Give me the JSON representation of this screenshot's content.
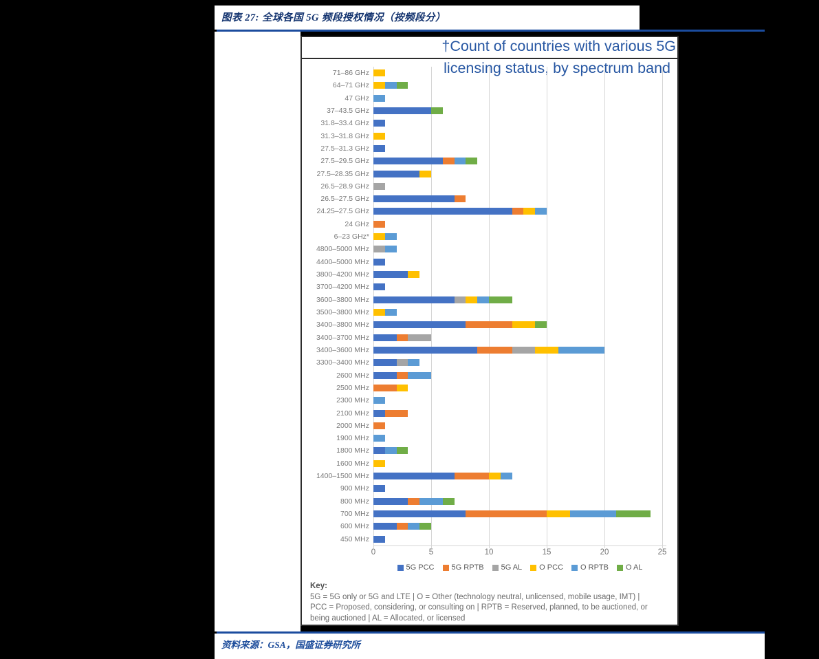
{
  "page": {
    "figure_label": "图表 27:  全球各国 5G 频段授权情况（按频段分）",
    "source_prefix": "资料来源：",
    "source_text": "GSA，国盛证券研究所"
  },
  "chart_data": {
    "type": "bar",
    "orientation": "horizontal",
    "stacked": true,
    "title_line1": "†Count of countries with various 5G",
    "title_line2": "licensing status, by spectrum band",
    "title_color": "#2656a2",
    "xlim": [
      0,
      25
    ],
    "xticks": [
      "0",
      "5",
      "10",
      "15",
      "20",
      "25"
    ],
    "grid": true,
    "legend_position": "bottom",
    "categories": [
      "71–86 GHz",
      "64–71 GHz",
      "47 GHz",
      "37–43.5 GHz",
      "31.8–33.4 GHz",
      "31.3–31.8 GHz",
      "27.5–31.3 GHz",
      "27.5–29.5 GHz",
      "27.5–28.35 GHz",
      "26.5–28.9 GHz",
      "26.5–27.5 GHz",
      "24.25–27.5 GHz",
      "24 GHz",
      "6–23 GHz*",
      "4800–5000 MHz",
      "4400–5000 MHz",
      "3800–4200 MHz",
      "3700–4200 MHz",
      "3600–3800 MHz",
      "3500–3800 MHz",
      "3400–3800 MHz",
      "3400–3700 MHz",
      "3400–3600 MHz",
      "3300–3400 MHz",
      "2600 MHz",
      "2500 MHz",
      "2300 MHz",
      "2100 MHz",
      "2000 MHz",
      "1900 MHz",
      "1800 MHz",
      "1600 MHz",
      "1400–1500 MHz",
      "900 MHz",
      "800 MHz",
      "700 MHz",
      "600 MHz",
      "450 MHz"
    ],
    "series": [
      {
        "name": "5G PCC",
        "color": "#4472C4",
        "values": [
          0,
          0,
          0,
          5,
          1,
          0,
          1,
          6,
          4,
          0,
          7,
          12,
          0,
          0,
          0,
          1,
          3,
          1,
          7,
          0,
          8,
          2,
          9,
          2,
          2,
          0,
          0,
          1,
          0,
          0,
          1,
          0,
          7,
          1,
          3,
          8,
          2,
          1
        ]
      },
      {
        "name": "5G RPTB",
        "color": "#ED7D31",
        "values": [
          0,
          0,
          0,
          0,
          0,
          0,
          0,
          1,
          0,
          0,
          1,
          1,
          1,
          0,
          0,
          0,
          0,
          0,
          0,
          0,
          4,
          1,
          3,
          0,
          1,
          2,
          0,
          2,
          1,
          0,
          0,
          0,
          3,
          0,
          1,
          7,
          1,
          0
        ]
      },
      {
        "name": "5G AL",
        "color": "#A5A5A5",
        "values": [
          0,
          0,
          0,
          0,
          0,
          0,
          0,
          0,
          0,
          1,
          0,
          0,
          0,
          0,
          1,
          0,
          0,
          0,
          1,
          0,
          0,
          2,
          2,
          1,
          0,
          0,
          0,
          0,
          0,
          0,
          0,
          0,
          0,
          0,
          0,
          0,
          0,
          0
        ]
      },
      {
        "name": "O PCC",
        "color": "#FFC000",
        "values": [
          1,
          1,
          0,
          0,
          0,
          1,
          0,
          0,
          1,
          0,
          0,
          1,
          0,
          1,
          0,
          0,
          1,
          0,
          1,
          1,
          2,
          0,
          2,
          0,
          0,
          1,
          0,
          0,
          0,
          0,
          0,
          1,
          1,
          0,
          0,
          2,
          0,
          0
        ]
      },
      {
        "name": "O RPTB",
        "color": "#5B9BD5",
        "values": [
          0,
          1,
          1,
          0,
          0,
          0,
          0,
          1,
          0,
          0,
          0,
          1,
          0,
          1,
          1,
          0,
          0,
          0,
          1,
          1,
          0,
          0,
          4,
          1,
          2,
          0,
          1,
          0,
          0,
          1,
          1,
          0,
          1,
          0,
          2,
          4,
          1,
          0
        ]
      },
      {
        "name": "O AL",
        "color": "#70AD47",
        "values": [
          0,
          1,
          0,
          1,
          0,
          0,
          0,
          1,
          0,
          0,
          0,
          0,
          0,
          0,
          0,
          0,
          0,
          0,
          2,
          0,
          1,
          0,
          0,
          0,
          0,
          0,
          0,
          0,
          0,
          0,
          1,
          0,
          0,
          0,
          1,
          3,
          1,
          0
        ]
      }
    ],
    "key_title": "Key:",
    "key_text": "5G = 5G only or 5G and LTE  |  O = Other (technology neutral, unlicensed, mobile usage, IMT)  |  PCC = Proposed, considering, or consulting on  |  RPTB = Reserved, planned, to be auctioned, or being auctioned  |  AL = Allocated, or licensed"
  }
}
